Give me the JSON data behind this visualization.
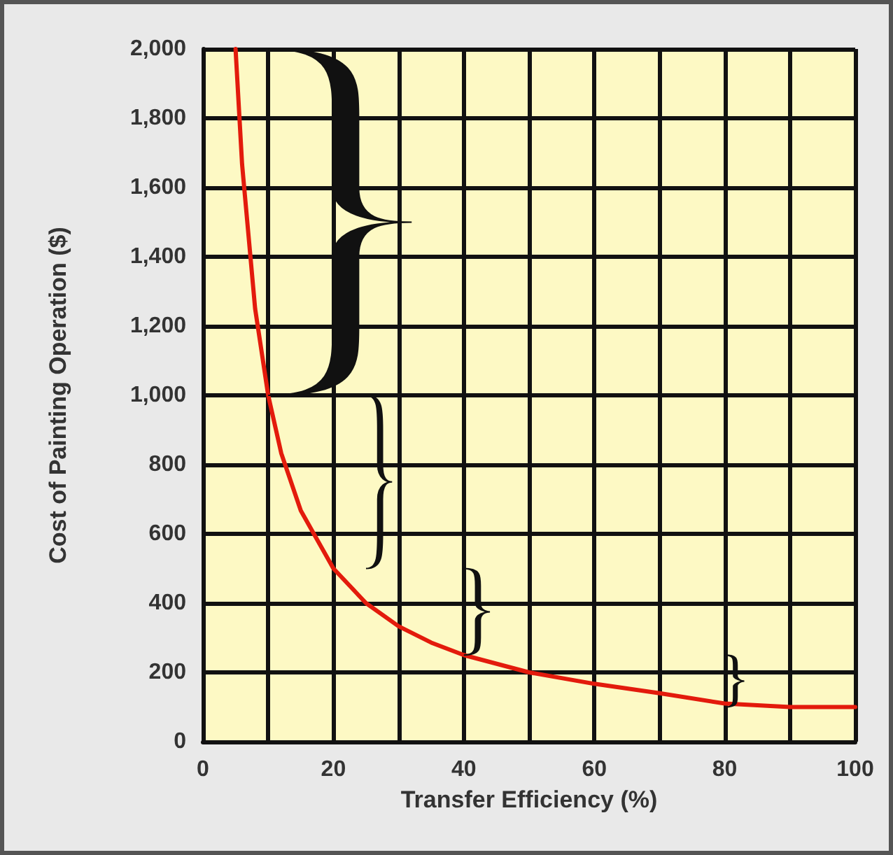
{
  "chart_data": {
    "type": "line",
    "xlabel": "Transfer Efficiency (%)",
    "ylabel": "Cost of Painting Operation ($)",
    "x": [
      5,
      6,
      8,
      10,
      12,
      15,
      20,
      25,
      30,
      35,
      40,
      50,
      60,
      70,
      80,
      90,
      100
    ],
    "series": [
      {
        "color": "#e31b0c",
        "values": [
          2000,
          1667,
          1250,
          1000,
          833,
          667,
          500,
          400,
          333,
          286,
          250,
          200,
          167,
          140,
          110,
          100,
          100
        ]
      }
    ],
    "xlim": [
      0,
      100
    ],
    "xticks": [
      0,
      {
        "value": 10,
        "label": null
      },
      20,
      {
        "value": 30,
        "label": null
      },
      40,
      {
        "value": 50,
        "label": null
      },
      60,
      {
        "value": 70,
        "label": null
      },
      80,
      {
        "value": 90,
        "label": null
      },
      100
    ],
    "ylim": [
      0,
      2000
    ],
    "yticks": [
      0,
      200,
      400,
      600,
      800,
      {
        "value": 1000,
        "label": "1,000"
      },
      {
        "value": 1200,
        "label": "1,200"
      },
      {
        "value": 1400,
        "label": "1,400"
      },
      {
        "value": 1600,
        "label": "1,600"
      },
      {
        "value": 1800,
        "label": "1,800"
      },
      {
        "value": 2000,
        "label": "2,000"
      }
    ],
    "grid": true,
    "marker": "none",
    "line_style": "solid"
  }
}
